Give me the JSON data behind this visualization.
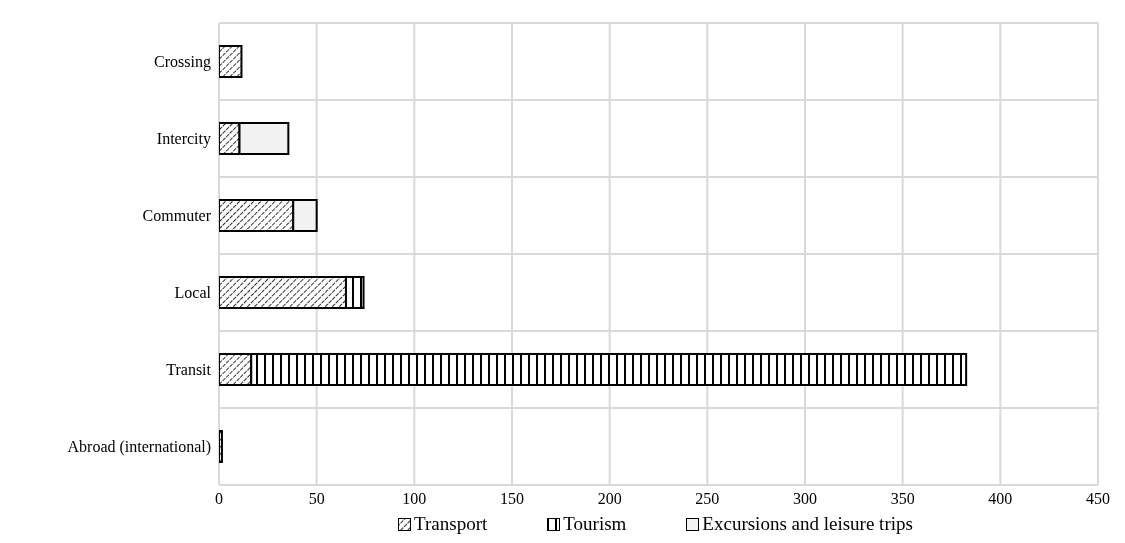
{
  "chart_data": {
    "type": "bar",
    "orientation": "horizontal",
    "stacked": true,
    "categories": [
      "Crossing",
      "Intercity",
      "Commuter",
      "Local",
      "Transit",
      "Abroad (international)"
    ],
    "series": [
      {
        "name": "Transport",
        "color": "#000000",
        "values": [
          11.5,
          10.5,
          38,
          65,
          16.5,
          1.5
        ]
      },
      {
        "name": "Tourism",
        "color": "#000000",
        "values": [
          0,
          0,
          0,
          9,
          366,
          0
        ]
      },
      {
        "name": "Excursions and leisure trips",
        "color": "#f2f2f2",
        "values": [
          0,
          25,
          12,
          0,
          0,
          0
        ]
      }
    ],
    "xlim": [
      0,
      450
    ],
    "xticks": [
      0,
      50,
      100,
      150,
      200,
      250,
      300,
      350,
      400,
      450
    ],
    "grid": true,
    "legend": "bottom"
  }
}
